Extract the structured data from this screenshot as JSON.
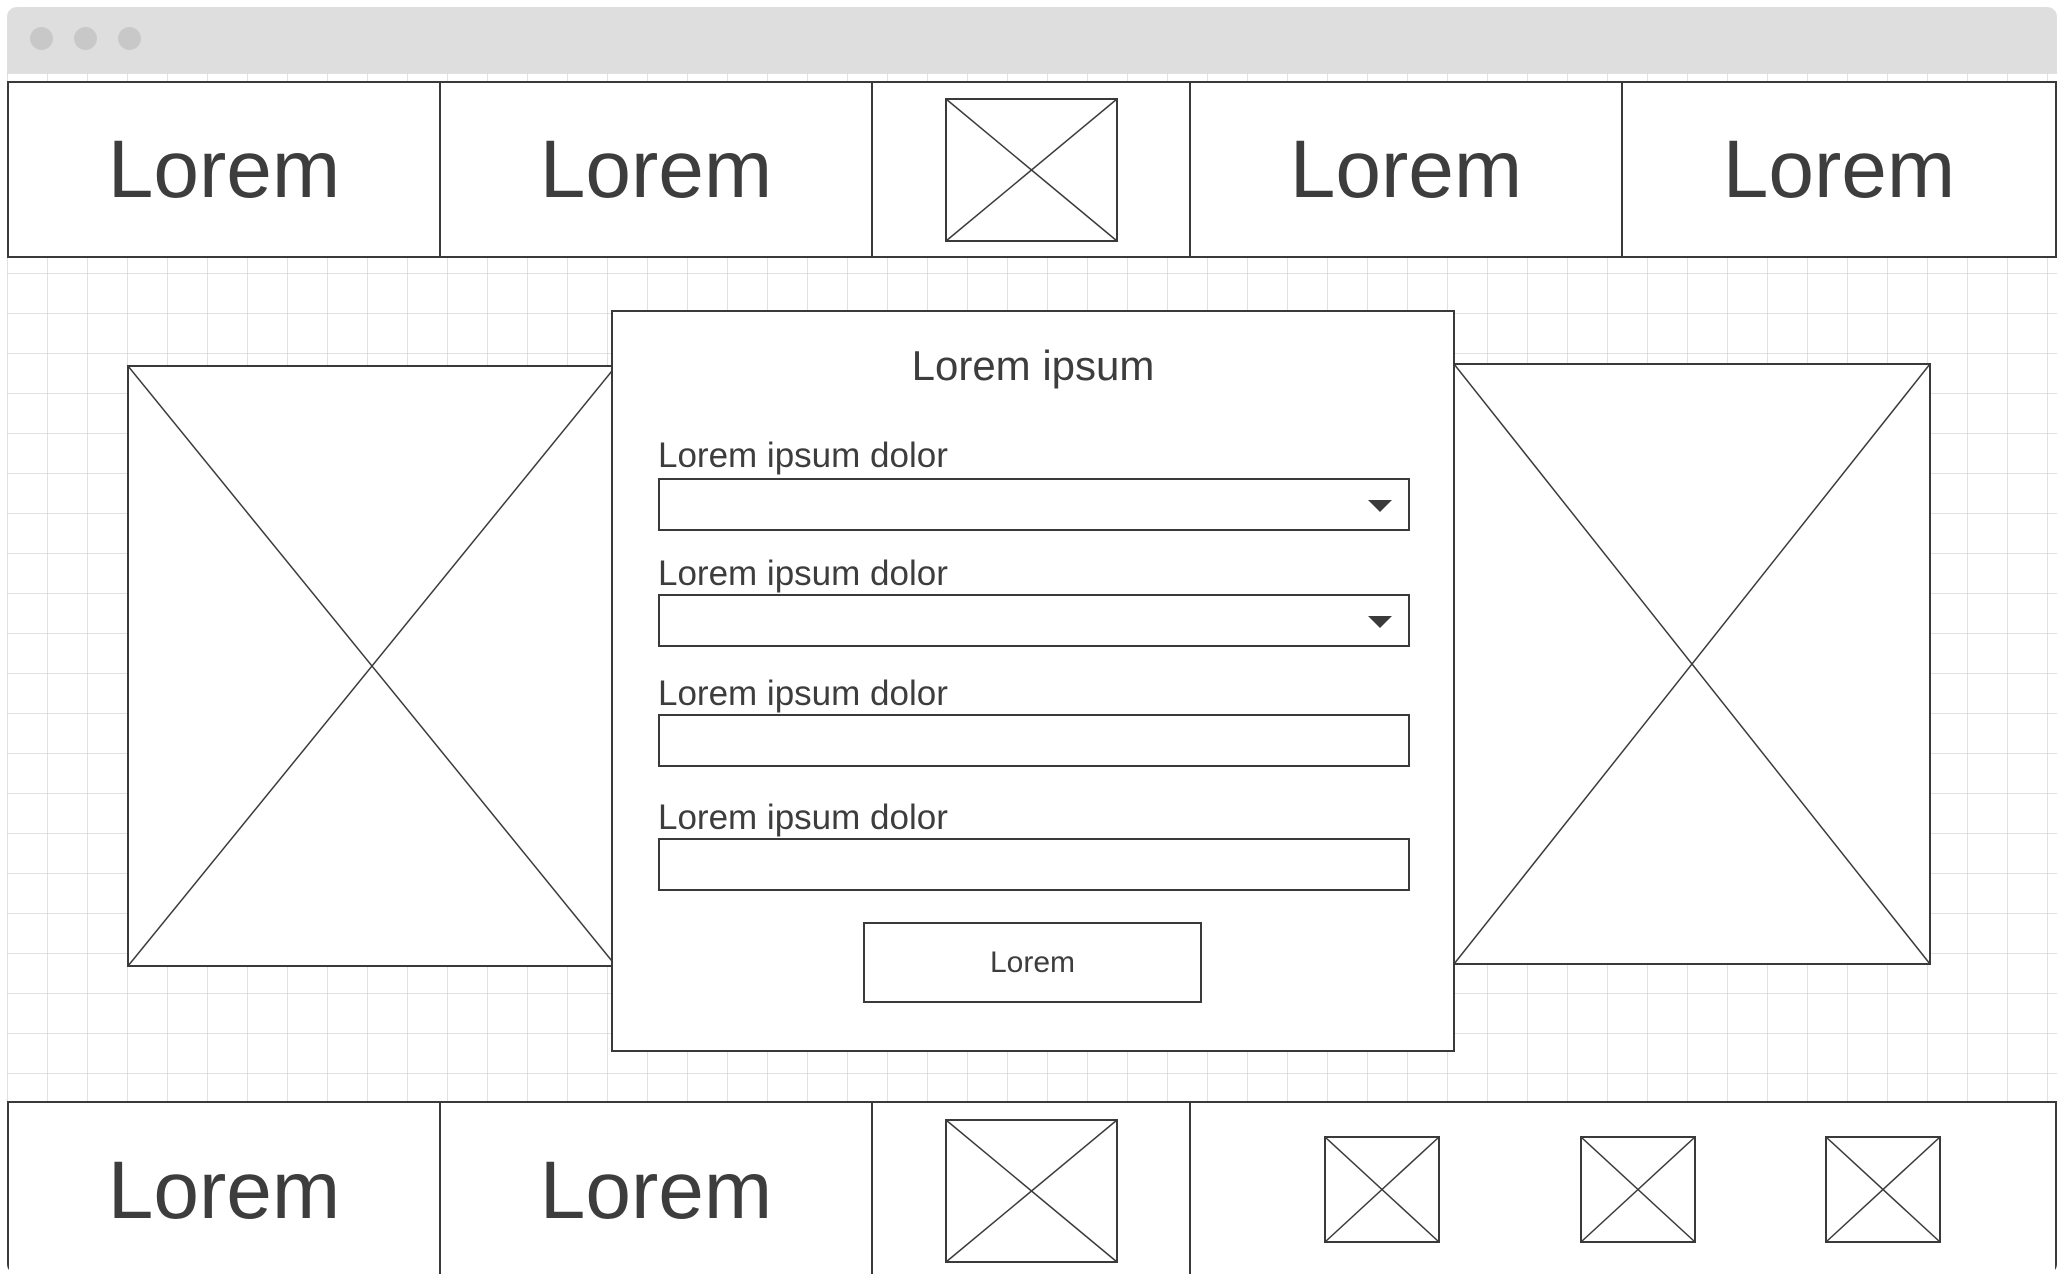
{
  "header": {
    "items": [
      "Lorem",
      "Lorem",
      "Lorem",
      "Lorem"
    ],
    "logo_icon": "image-placeholder-icon"
  },
  "dialog": {
    "title": "Lorem ipsum",
    "fields": [
      {
        "label": "Lorem ipsum dolor",
        "type": "select",
        "value": ""
      },
      {
        "label": "Lorem ipsum dolor",
        "type": "select",
        "value": ""
      },
      {
        "label": "Lorem ipsum dolor",
        "type": "text",
        "value": ""
      },
      {
        "label": "Lorem ipsum dolor",
        "type": "text",
        "value": ""
      }
    ],
    "submit_label": "Lorem"
  },
  "footer": {
    "items": [
      "Lorem",
      "Lorem"
    ],
    "logo_icon": "image-placeholder-icon",
    "social_icons": [
      "image-placeholder-icon",
      "image-placeholder-icon",
      "image-placeholder-icon"
    ]
  },
  "colors": {
    "stroke": "#3a3a3a",
    "text": "#3d3d3d",
    "titlebar": "#dedede",
    "grid": "#e6e6e6"
  }
}
